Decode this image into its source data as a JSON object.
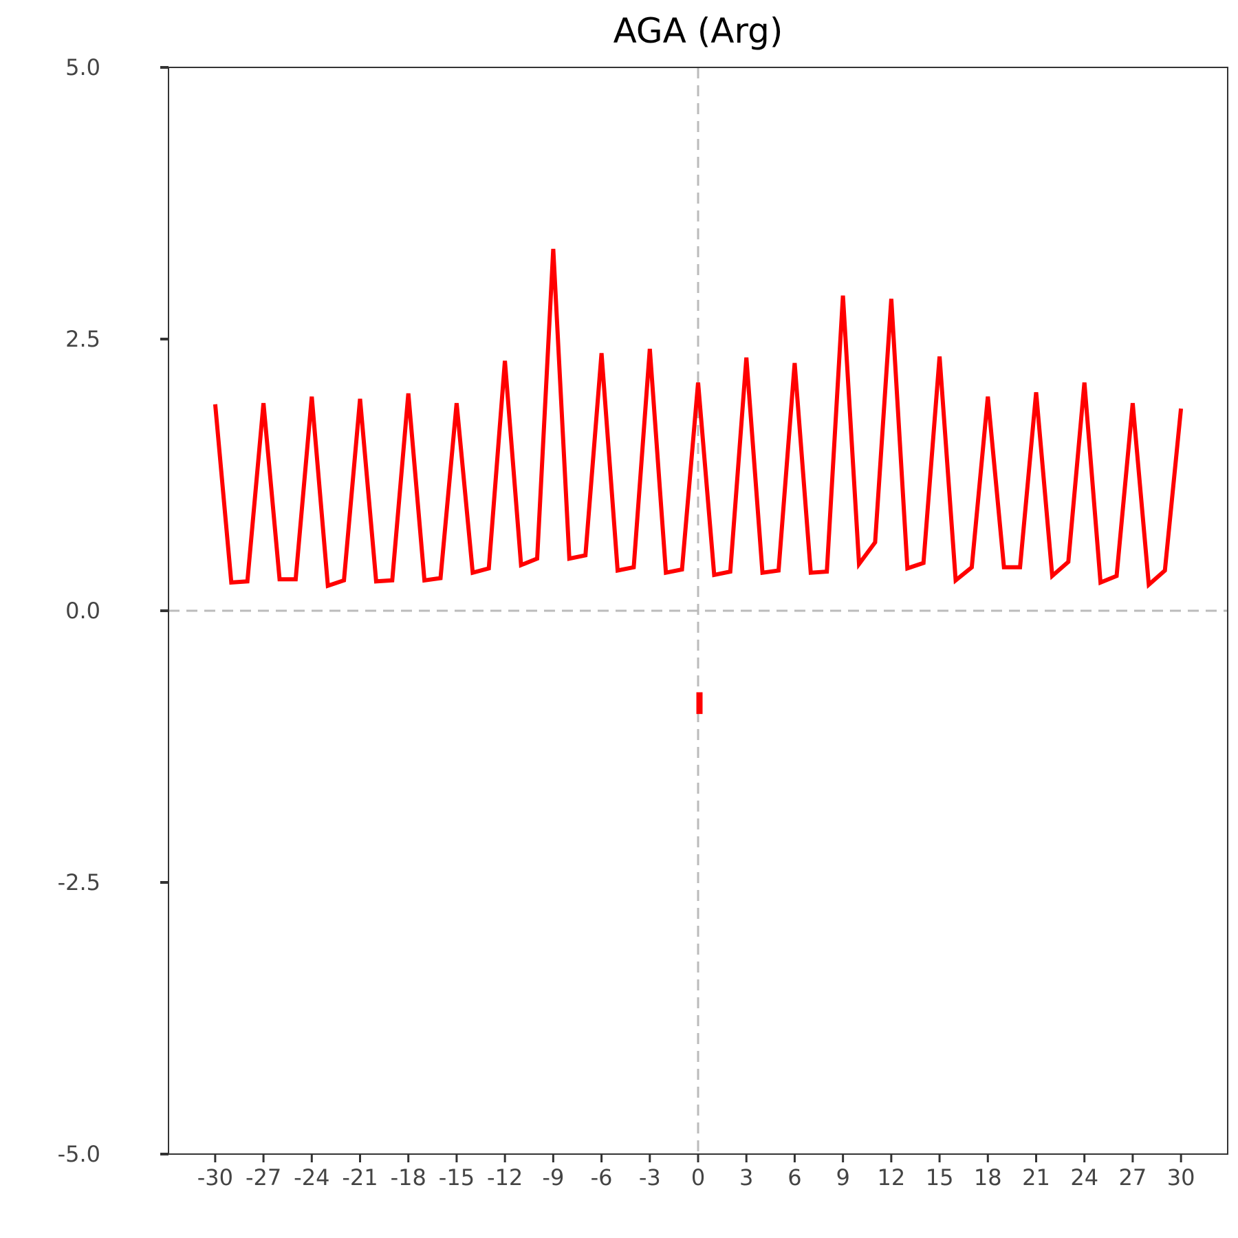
{
  "chart_data": {
    "type": "line",
    "title": "AGA (Arg)",
    "xlabel": "",
    "ylabel": "",
    "xlim": [
      -32.9,
      32.9
    ],
    "ylim": [
      -5.0,
      5.0
    ],
    "grid": false,
    "legend": "none",
    "x_ticks": [
      "-30",
      "-27",
      "-24",
      "-21",
      "-18",
      "-15",
      "-12",
      "-9",
      "-6",
      "-3",
      "0",
      "3",
      "6",
      "9",
      "12",
      "15",
      "18",
      "21",
      "24",
      "27",
      "30"
    ],
    "y_ticks": [
      "5.0",
      "2.5",
      "0.0",
      "-2.5",
      "-5.0"
    ],
    "reference_lines": {
      "x": 0,
      "y": 0,
      "style": "dashed",
      "color": "#bbbbbb"
    },
    "series": [
      {
        "color": "#ff0000",
        "x": [
          -30,
          -29,
          -28,
          -27,
          -26,
          -25,
          -24,
          -23,
          -22,
          -21,
          -20,
          -19,
          -18,
          -17,
          -16,
          -15,
          -14,
          -13,
          -12,
          -11,
          -10,
          -9,
          -8,
          -7,
          -6,
          -5,
          -4,
          -3,
          -2,
          -1,
          0,
          1,
          2,
          3,
          4,
          5,
          6,
          7,
          8,
          9,
          10,
          11,
          12,
          13,
          14,
          15,
          16,
          17,
          18,
          19,
          20,
          21,
          22,
          23,
          24,
          25,
          26,
          27,
          28,
          29,
          30
        ],
        "y": [
          1.9,
          0.26,
          0.27,
          1.91,
          0.29,
          0.29,
          1.97,
          0.23,
          0.28,
          1.95,
          0.27,
          0.28,
          2.0,
          0.28,
          0.3,
          1.91,
          0.35,
          0.39,
          2.3,
          0.42,
          0.48,
          3.33,
          0.48,
          0.51,
          2.37,
          0.37,
          0.4,
          2.41,
          0.35,
          0.38,
          2.1,
          0.33,
          0.36,
          2.33,
          0.35,
          0.37,
          2.28,
          0.35,
          0.36,
          2.9,
          0.43,
          0.63,
          2.87,
          0.39,
          0.44,
          2.34,
          0.28,
          0.4,
          1.97,
          0.4,
          0.4,
          2.01,
          0.32,
          0.45,
          2.1,
          0.26,
          0.32,
          1.91,
          0.24,
          0.37,
          1.86
        ]
      }
    ],
    "isolated_marks": [
      {
        "x": 0,
        "y_from": -0.95,
        "y_to": -0.75,
        "color": "#ff0000"
      }
    ]
  }
}
